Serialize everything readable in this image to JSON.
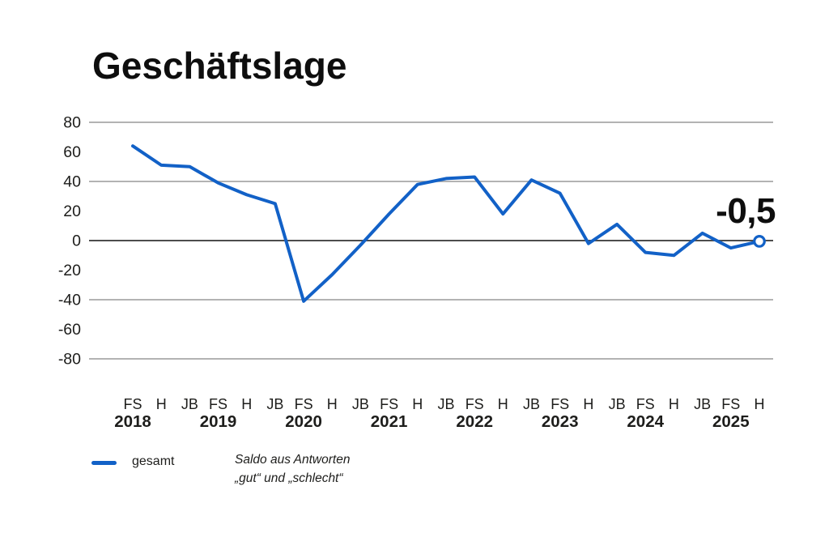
{
  "colors": {
    "background": "#ffffff",
    "line": "#1261C7",
    "grid": "#9a9a9a",
    "zero_line": "#4d4d4d",
    "text": "#1d1d1b",
    "title_text": "#0e0e0e"
  },
  "note": {
    "line1": "Saldo aus Antworten",
    "line2": "„gut“ und „schlecht“"
  },
  "chart_data": {
    "type": "line",
    "title": "Geschäftslage",
    "grid": "horizontal-only",
    "legend_position": "bottom-left",
    "y_ticks": [
      80,
      60,
      40,
      20,
      0,
      -20,
      -40,
      -60,
      -80
    ],
    "gridlines": [
      80,
      40,
      0,
      -40,
      -80
    ],
    "ylim": [
      -90,
      90
    ],
    "x_labels": [
      "FS",
      "H",
      "JB",
      "FS",
      "H",
      "JB",
      "FS",
      "H",
      "JB",
      "FS",
      "H",
      "JB",
      "FS",
      "H",
      "JB",
      "FS",
      "H",
      "JB",
      "FS",
      "H",
      "JB",
      "FS",
      "H"
    ],
    "years": [
      {
        "label": "2018",
        "at": 0
      },
      {
        "label": "2019",
        "at": 3
      },
      {
        "label": "2020",
        "at": 6
      },
      {
        "label": "2021",
        "at": 9
      },
      {
        "label": "2022",
        "at": 12
      },
      {
        "label": "2023",
        "at": 15
      },
      {
        "label": "2024",
        "at": 18
      },
      {
        "label": "2025",
        "at": 21
      }
    ],
    "series": [
      {
        "name": "gesamt",
        "color": "#1261C7",
        "values": [
          64,
          51,
          50,
          39,
          31,
          25,
          -41,
          -23,
          -3,
          18,
          38,
          42,
          43,
          18,
          41,
          32,
          -2,
          11,
          -8,
          -10,
          5,
          -5,
          -0.5
        ]
      }
    ],
    "annotation": {
      "text": "-0,5",
      "applies_to": "H 2025"
    },
    "last_point_marker": "open-circle"
  }
}
